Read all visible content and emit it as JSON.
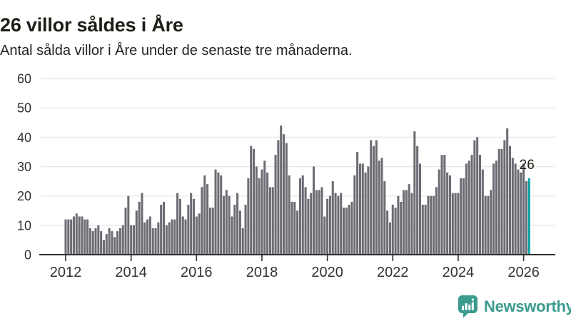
{
  "header": {
    "title": "26 villor såldes i Åre",
    "subtitle": "Antal sålda villor i Åre under de senaste tre månaderna."
  },
  "chart_data": {
    "type": "bar",
    "title": "26 villor såldes i Åre",
    "subtitle": "Antal sålda villor i Åre under de senaste tre månaderna.",
    "x_start": "2012-01",
    "x_interval": "month",
    "values": [
      12,
      12,
      12,
      13,
      14,
      13,
      13,
      12,
      12,
      9,
      8,
      9,
      10,
      8,
      5,
      7,
      9,
      8,
      6,
      8,
      9,
      10,
      16,
      20,
      10,
      10,
      15,
      18,
      21,
      11,
      12,
      13,
      9,
      9,
      11,
      17,
      18,
      10,
      11,
      12,
      12,
      21,
      19,
      13,
      12,
      17,
      21,
      19,
      13,
      14,
      23,
      27,
      24,
      16,
      16,
      29,
      28,
      27,
      20,
      22,
      20,
      13,
      17,
      21,
      15,
      9,
      17,
      26,
      37,
      36,
      30,
      26,
      29,
      32,
      28,
      23,
      23,
      34,
      39,
      44,
      41,
      38,
      27,
      18,
      18,
      15,
      26,
      27,
      23,
      19,
      21,
      30,
      22,
      22,
      23,
      13,
      19,
      20,
      25,
      21,
      20,
      21,
      16,
      16,
      17,
      18,
      27,
      35,
      31,
      31,
      28,
      30,
      39,
      37,
      39,
      32,
      33,
      25,
      15,
      11,
      17,
      16,
      20,
      18,
      22,
      22,
      24,
      21,
      42,
      37,
      31,
      17,
      17,
      20,
      20,
      20,
      23,
      29,
      34,
      34,
      28,
      27,
      21,
      21,
      21,
      26,
      26,
      31,
      32,
      34,
      39,
      40,
      34,
      29,
      20,
      20,
      22,
      31,
      32,
      36,
      36,
      39,
      43,
      37,
      33,
      31,
      29,
      28,
      31,
      25,
      26
    ],
    "highlight": {
      "index": 170,
      "value": 26,
      "label": "26"
    },
    "ylim": [
      0,
      60
    ],
    "yticks": [
      0,
      10,
      20,
      30,
      40,
      50,
      60
    ],
    "xticks": [
      {
        "label": "2012",
        "month_index": 0
      },
      {
        "label": "2014",
        "month_index": 24
      },
      {
        "label": "2016",
        "month_index": 48
      },
      {
        "label": "2018",
        "month_index": 72
      },
      {
        "label": "2020",
        "month_index": 96
      },
      {
        "label": "2022",
        "month_index": 120
      },
      {
        "label": "2024",
        "month_index": 144
      },
      {
        "label": "2026",
        "month_index": 168
      }
    ],
    "grid": true,
    "legend": "none",
    "bar_color": "#6C6C74",
    "highlight_color": "#00A0A0",
    "grid_color": "#E8E8E8",
    "axis_color": "#2F2F2F",
    "tick_label_color": "#333333",
    "annotation_color": "#1d1d16"
  },
  "branding": {
    "logo_text": "Newsworthy",
    "logo_color": "#3C9B8F"
  }
}
